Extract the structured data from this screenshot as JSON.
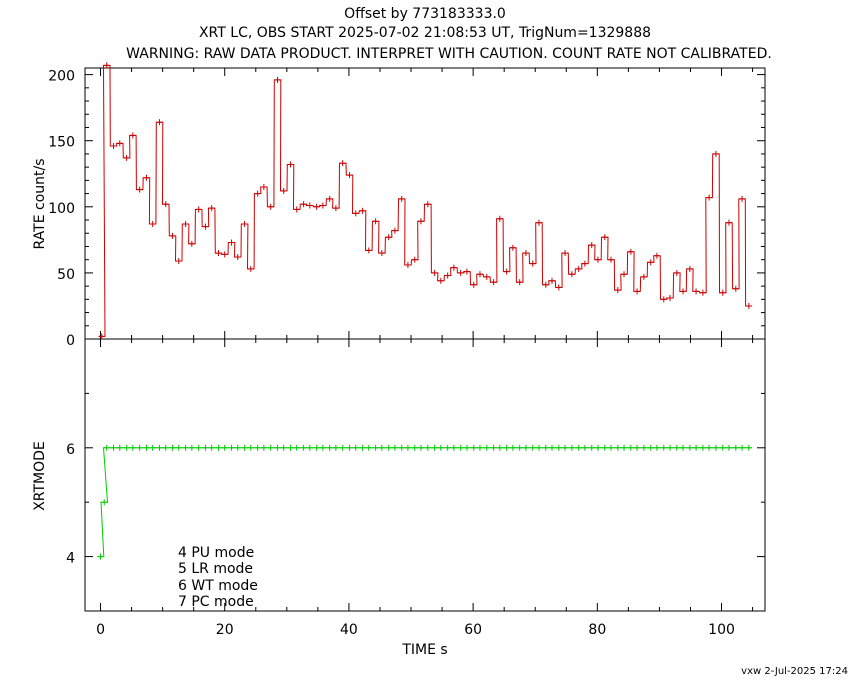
{
  "title_lines": [
    "Offset by 773183333.0",
    "XRT LC, OBS START 2025-07-02 21:08:53 UT, TrigNum=1329888",
    "WARNING: RAW DATA PRODUCT. INTERPRET WITH CAUTION. COUNT RATE NOT CALIBRATED."
  ],
  "footer": "vxw  2-Jul-2025 17:24",
  "colors": {
    "rate": "#cc0000",
    "mode": "#00cc00",
    "axes": "#000000"
  },
  "chart_data": [
    {
      "type": "line",
      "panel": "top",
      "step": true,
      "ylabel": "RATE  count/s",
      "xlim": [
        -2.5,
        107
      ],
      "ylim": [
        0,
        205
      ],
      "yticks": [
        0,
        50,
        100,
        150,
        200
      ],
      "ytick_labels": [
        "0",
        "50",
        "100",
        "150",
        "200"
      ],
      "grid": false,
      "series": [
        {
          "color": "#cc0000",
          "bin_width": 1.05,
          "x": [
            0.2,
            1.0,
            2.1,
            3.1,
            4.2,
            5.2,
            6.3,
            7.4,
            8.4,
            9.5,
            10.5,
            11.6,
            12.6,
            13.7,
            14.7,
            15.8,
            16.9,
            17.9,
            19.0,
            20.0,
            21.1,
            22.1,
            23.2,
            24.2,
            25.3,
            26.3,
            27.4,
            28.5,
            29.5,
            30.6,
            31.6,
            32.7,
            33.7,
            34.8,
            35.8,
            36.9,
            37.9,
            39.0,
            40.1,
            41.1,
            42.2,
            43.2,
            44.3,
            45.3,
            46.4,
            47.4,
            48.5,
            49.5,
            50.6,
            51.6,
            52.7,
            53.8,
            54.8,
            55.9,
            56.9,
            58.0,
            59.0,
            60.1,
            61.1,
            62.2,
            63.3,
            64.3,
            65.4,
            66.4,
            67.5,
            68.5,
            69.6,
            70.6,
            71.7,
            72.7,
            73.8,
            74.8,
            75.9,
            77.0,
            78.0,
            79.1,
            80.1,
            81.2,
            82.2,
            83.3,
            84.3,
            85.4,
            86.4,
            87.5,
            88.6,
            89.6,
            90.7,
            91.7,
            92.8,
            93.8,
            94.9,
            95.9,
            97.0,
            98.0,
            99.1,
            100.2,
            101.2,
            102.3,
            103.3,
            104.4
          ],
          "y": [
            2,
            207,
            146,
            148,
            137,
            154,
            113,
            122,
            87,
            164,
            102,
            78,
            59,
            87,
            72,
            98,
            85,
            99,
            65,
            64,
            73,
            62,
            87,
            53,
            110,
            115,
            100,
            196,
            112,
            132,
            98,
            102,
            101,
            100,
            101,
            106,
            99,
            133,
            124,
            95,
            97,
            67,
            89,
            65,
            77,
            82,
            106,
            56,
            60,
            89,
            102,
            50,
            44,
            48,
            54,
            50,
            51,
            41,
            49,
            47,
            43,
            91,
            51,
            69,
            43,
            65,
            57,
            88,
            41,
            44,
            39,
            65,
            49,
            53,
            57,
            71,
            60,
            77,
            60,
            37,
            49,
            66,
            36,
            47,
            58,
            63,
            30,
            31,
            50,
            36,
            53,
            36,
            35,
            107,
            140,
            35,
            88,
            38,
            106,
            25
          ]
        }
      ]
    },
    {
      "type": "line",
      "panel": "bottom",
      "step": true,
      "xlabel": "TIME  s",
      "ylabel": "XRTMODE",
      "xlim": [
        -2.5,
        107
      ],
      "ylim": [
        3,
        8
      ],
      "xticks": [
        0,
        20,
        40,
        60,
        80,
        100
      ],
      "xtick_labels": [
        "0",
        "20",
        "40",
        "60",
        "80",
        "100"
      ],
      "yticks": [
        4,
        6
      ],
      "ytick_labels": [
        "4",
        "6"
      ],
      "grid": false,
      "legend": [
        "4  PU  mode",
        "5  LR  mode",
        "6  WT  mode",
        "7  PC  mode"
      ],
      "series": [
        {
          "color": "#00cc00",
          "bin_width": 1.05,
          "x": [
            0.0,
            0.6,
            1.0,
            2.1,
            3.1,
            4.2,
            5.2,
            6.3,
            7.4,
            8.4,
            9.5,
            10.5,
            11.6,
            12.6,
            13.7,
            14.7,
            15.8,
            16.9,
            17.9,
            19.0,
            20.0,
            21.1,
            22.1,
            23.2,
            24.2,
            25.3,
            26.3,
            27.4,
            28.5,
            29.5,
            30.6,
            31.6,
            32.7,
            33.7,
            34.8,
            35.8,
            36.9,
            37.9,
            39.0,
            40.1,
            41.1,
            42.2,
            43.2,
            44.3,
            45.3,
            46.4,
            47.4,
            48.5,
            49.5,
            50.6,
            51.6,
            52.7,
            53.8,
            54.8,
            55.9,
            56.9,
            58.0,
            59.0,
            60.1,
            61.1,
            62.2,
            63.3,
            64.3,
            65.4,
            66.4,
            67.5,
            68.5,
            69.6,
            70.6,
            71.7,
            72.7,
            73.8,
            74.8,
            75.9,
            77.0,
            78.0,
            79.1,
            80.1,
            81.2,
            82.2,
            83.3,
            84.3,
            85.4,
            86.4,
            87.5,
            88.6,
            89.6,
            90.7,
            91.7,
            92.8,
            93.8,
            94.9,
            95.9,
            97.0,
            98.0,
            99.1,
            100.2,
            101.2,
            102.3,
            103.3,
            104.4
          ],
          "y": [
            4,
            5,
            6,
            6,
            6,
            6,
            6,
            6,
            6,
            6,
            6,
            6,
            6,
            6,
            6,
            6,
            6,
            6,
            6,
            6,
            6,
            6,
            6,
            6,
            6,
            6,
            6,
            6,
            6,
            6,
            6,
            6,
            6,
            6,
            6,
            6,
            6,
            6,
            6,
            6,
            6,
            6,
            6,
            6,
            6,
            6,
            6,
            6,
            6,
            6,
            6,
            6,
            6,
            6,
            6,
            6,
            6,
            6,
            6,
            6,
            6,
            6,
            6,
            6,
            6,
            6,
            6,
            6,
            6,
            6,
            6,
            6,
            6,
            6,
            6,
            6,
            6,
            6,
            6,
            6,
            6,
            6,
            6,
            6,
            6,
            6,
            6,
            6,
            6,
            6,
            6,
            6,
            6,
            6,
            6,
            6,
            6,
            6,
            6,
            6,
            6
          ]
        }
      ]
    }
  ]
}
